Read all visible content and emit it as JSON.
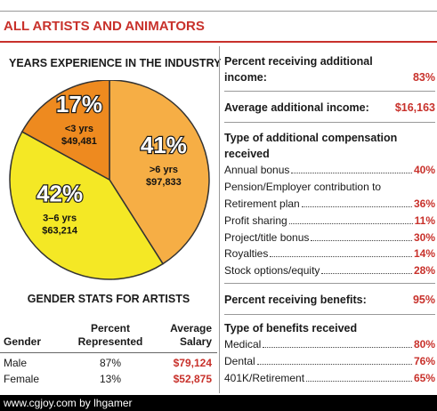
{
  "section_title": "ALL ARTISTS AND ANIMATORS",
  "left": {
    "heading": "YEARS EXPERIENCE IN THE INDUSTRY",
    "gender_title": "GENDER STATS FOR ARTISTS",
    "gender_table": {
      "headers": {
        "gender": "Gender",
        "percent": [
          "Percent",
          "Represented"
        ],
        "salary": [
          "Average",
          "Salary"
        ]
      },
      "rows": [
        {
          "gender": "Male",
          "percent": "87%",
          "salary": "$79,124"
        },
        {
          "gender": "Female",
          "percent": "13%",
          "salary": "$52,875"
        }
      ]
    }
  },
  "chart_data": {
    "type": "pie",
    "title": "YEARS EXPERIENCE IN THE INDUSTRY",
    "slices": [
      {
        "label": "<3 yrs",
        "value": 17,
        "display": "17%",
        "salary": "$49,481",
        "color": "#ee8a1f"
      },
      {
        "label": ">6 yrs",
        "value": 41,
        "display": "41%",
        "salary": "$97,833",
        "color": "#f6ae45"
      },
      {
        "label": "3–6 yrs",
        "value": 42,
        "display": "42%",
        "salary": "$63,214",
        "color": "#f4e825"
      }
    ]
  },
  "right": {
    "additional_income": {
      "label_line1": "Percent receiving additional",
      "label_line2": "income:",
      "value": "83%"
    },
    "average_additional": {
      "label": "Average additional income:",
      "value": "$16,163"
    },
    "comp_types": {
      "heading_line1": "Type of additional compensation",
      "heading_line2": "received",
      "items": [
        {
          "label": "Annual bonus",
          "value": "40%"
        },
        {
          "label": "Retirement plan",
          "value": "36%",
          "prefix": "Pension/Employer contribution to"
        },
        {
          "label": "Profit sharing",
          "value": "11%"
        },
        {
          "label": "Project/title bonus",
          "value": "30%"
        },
        {
          "label": "Royalties",
          "value": "14%"
        },
        {
          "label": "Stock options/equity",
          "value": "28%"
        }
      ]
    },
    "benefits": {
      "label": "Percent receiving benefits:",
      "value": "95%"
    },
    "benefit_types": {
      "heading": "Type of benefits received",
      "items": [
        {
          "label": "Medical",
          "value": "80%"
        },
        {
          "label": "Dental",
          "value": "76%"
        },
        {
          "label": "401K/Retirement",
          "value": "65%"
        }
      ]
    }
  },
  "footer": "www.cgjoy.com by lhgamer"
}
